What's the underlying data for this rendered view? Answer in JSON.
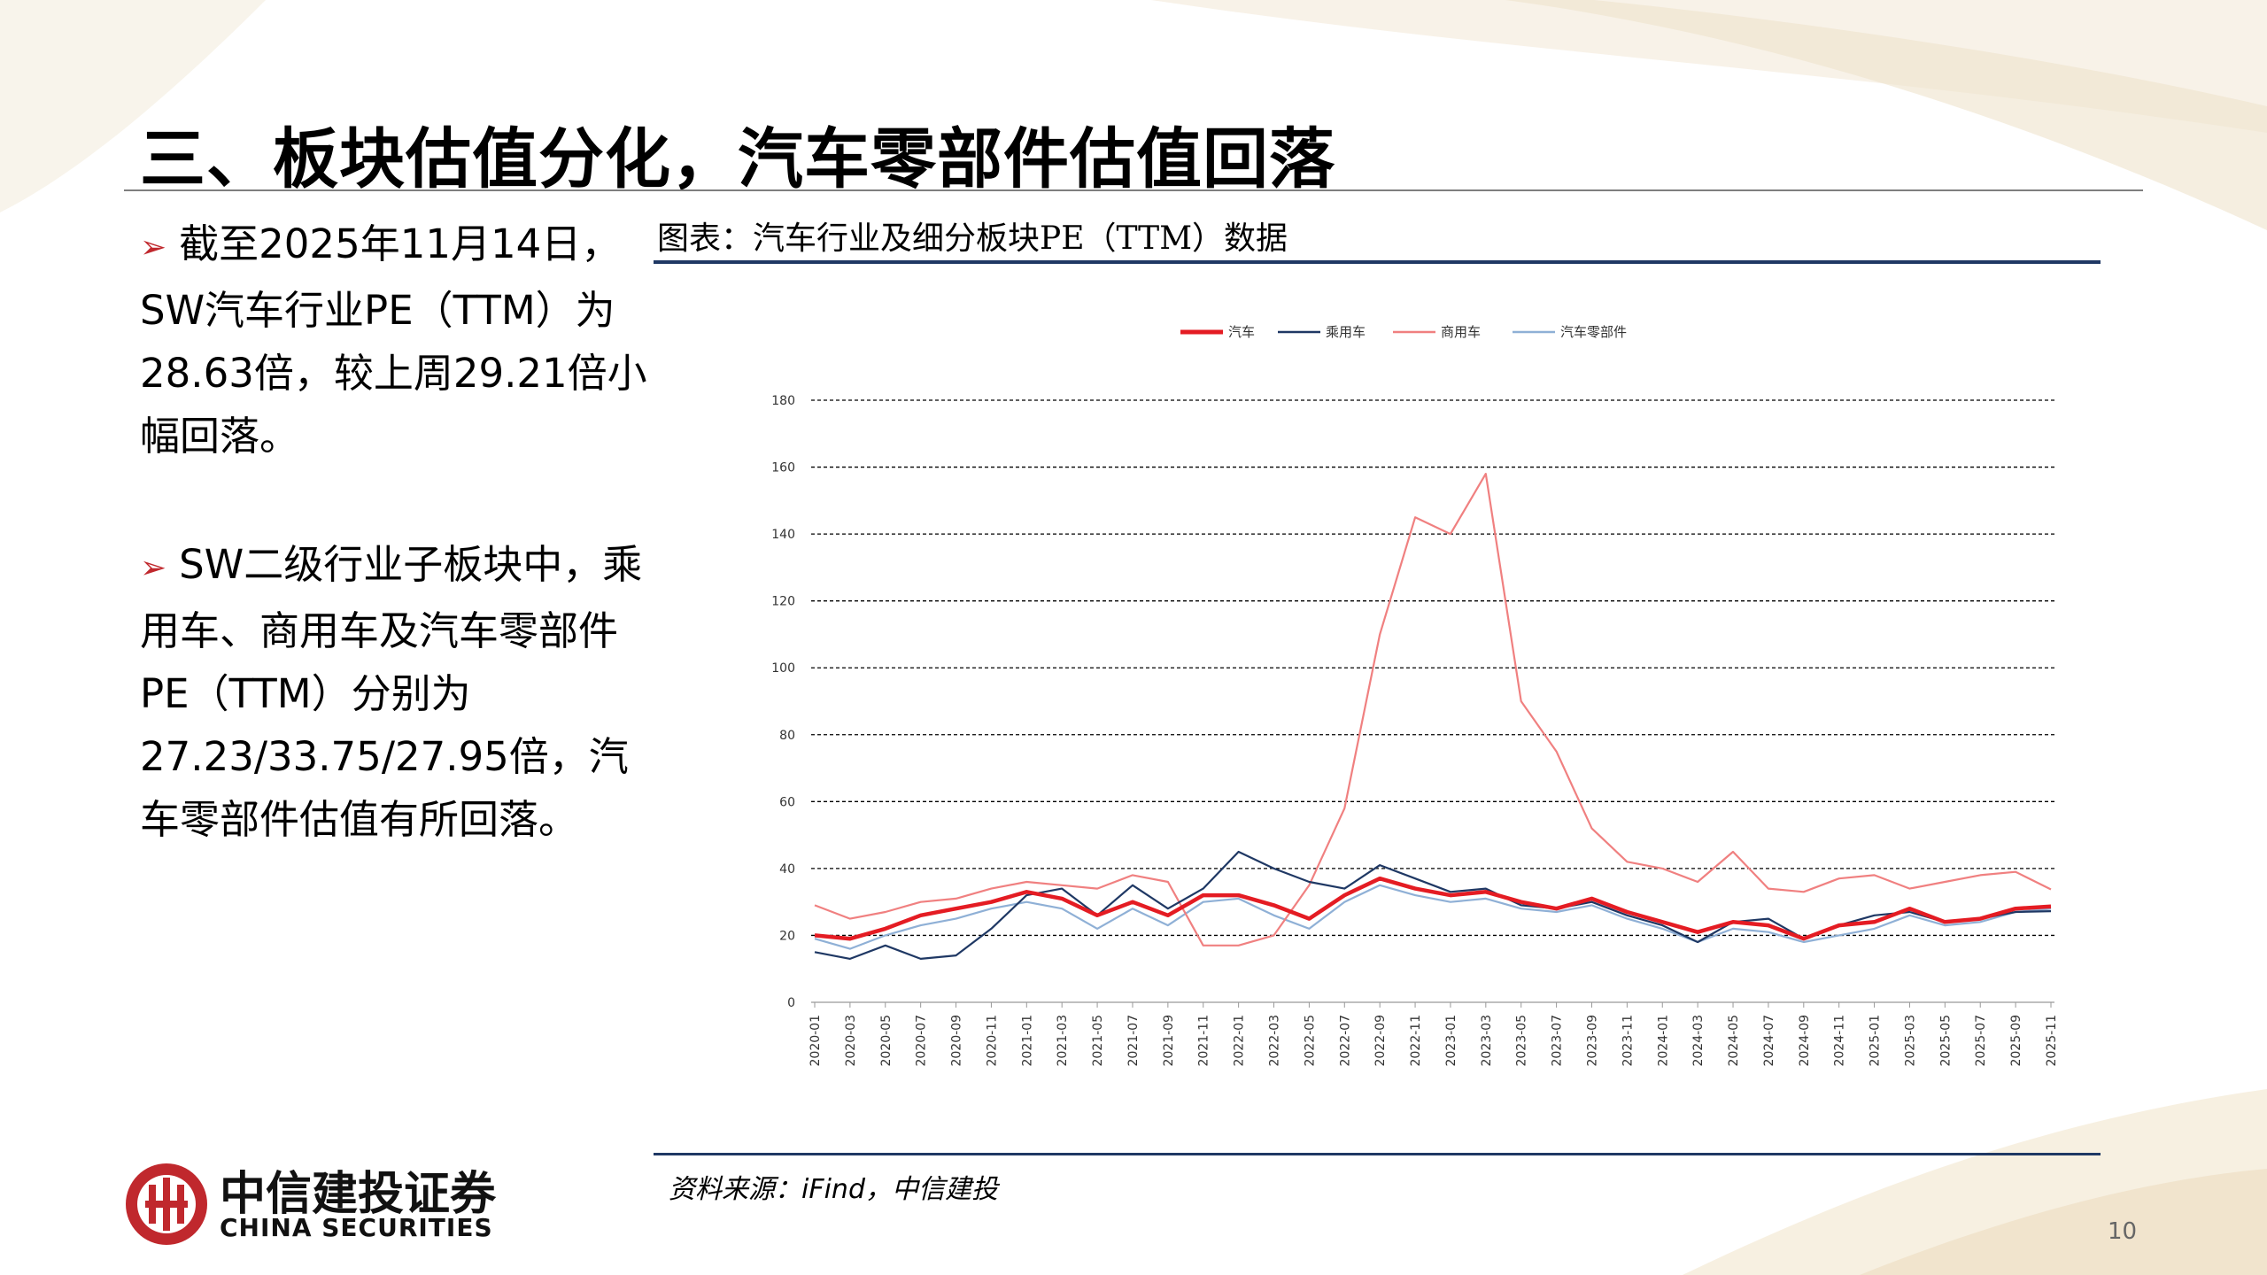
{
  "slide": {
    "title": "三、板块估值分化，汽车零部件估值回落",
    "page_number": "10",
    "brand_cn": "中信建投证券",
    "brand_en": "CHINA SECURITIES",
    "accent_red": "#c0282d",
    "navy": "#1f3864"
  },
  "bullets": [
    {
      "marker": "➢",
      "text": "截至2025年11月14日，SW汽车行业PE（TTM）为28.63倍，较上周29.21倍小幅回落。"
    },
    {
      "marker": "➢",
      "text": "SW二级行业子板块中，乘用车、商用车及汽车零部件PE（TTM）分别为27.23/33.75/27.95倍，汽车零部件估值有所回落。"
    }
  ],
  "figure": {
    "caption": "图表：汽车行业及细分板块PE（TTM）数据",
    "source": "资料来源：iFind，中信建投"
  },
  "chart_data": {
    "type": "line",
    "title": "",
    "xlabel": "",
    "ylabel": "",
    "ylim": [
      0,
      180
    ],
    "yticks": [
      "0",
      "20",
      "40",
      "60",
      "80",
      "100",
      "120",
      "140",
      "160",
      "180"
    ],
    "grid": "horizontal dashed",
    "legend_position": "top-center",
    "x": [
      "2020-01",
      "2020-03",
      "2020-05",
      "2020-07",
      "2020-09",
      "2020-11",
      "2021-01",
      "2021-03",
      "2021-05",
      "2021-07",
      "2021-09",
      "2021-11",
      "2022-01",
      "2022-03",
      "2022-05",
      "2022-07",
      "2022-09",
      "2022-11",
      "2023-01",
      "2023-03",
      "2023-05",
      "2023-07",
      "2023-09",
      "2023-11",
      "2024-01",
      "2024-03",
      "2024-05",
      "2024-07",
      "2024-09",
      "2024-11",
      "2025-01",
      "2025-03",
      "2025-05",
      "2025-07",
      "2025-09",
      "2025-11"
    ],
    "series": [
      {
        "name": "汽车",
        "color": "#e41c23",
        "values": [
          20,
          19,
          22,
          26,
          28,
          30,
          33,
          31,
          26,
          30,
          26,
          32,
          32,
          29,
          25,
          32,
          37,
          34,
          32,
          33,
          30,
          28,
          31,
          27,
          24,
          21,
          24,
          23,
          19,
          23,
          24,
          28,
          24,
          25,
          28,
          28.63
        ]
      },
      {
        "name": "乘用车",
        "color": "#1f3864",
        "values": [
          15,
          13,
          17,
          13,
          14,
          22,
          32,
          34,
          26,
          35,
          28,
          34,
          45,
          40,
          36,
          34,
          41,
          37,
          33,
          34,
          29,
          28,
          30,
          26,
          23,
          18,
          24,
          25,
          19,
          23,
          26,
          27,
          24,
          25,
          27,
          27.23
        ]
      },
      {
        "name": "商用车",
        "color": "#f08080",
        "values": [
          29,
          25,
          27,
          30,
          31,
          34,
          36,
          35,
          34,
          38,
          36,
          17,
          17,
          20,
          35,
          58,
          110,
          145,
          140,
          158,
          90,
          75,
          52,
          42,
          40,
          36,
          45,
          34,
          33,
          37,
          38,
          34,
          36,
          38,
          39,
          33.75
        ]
      },
      {
        "name": "汽车零部件",
        "color": "#8fb0d6",
        "values": [
          19,
          16,
          20,
          23,
          25,
          28,
          30,
          28,
          22,
          28,
          23,
          30,
          31,
          26,
          22,
          30,
          35,
          32,
          30,
          31,
          28,
          27,
          29,
          25,
          22,
          18,
          22,
          21,
          18,
          20,
          22,
          26,
          23,
          24,
          27,
          27.95
        ]
      }
    ]
  }
}
